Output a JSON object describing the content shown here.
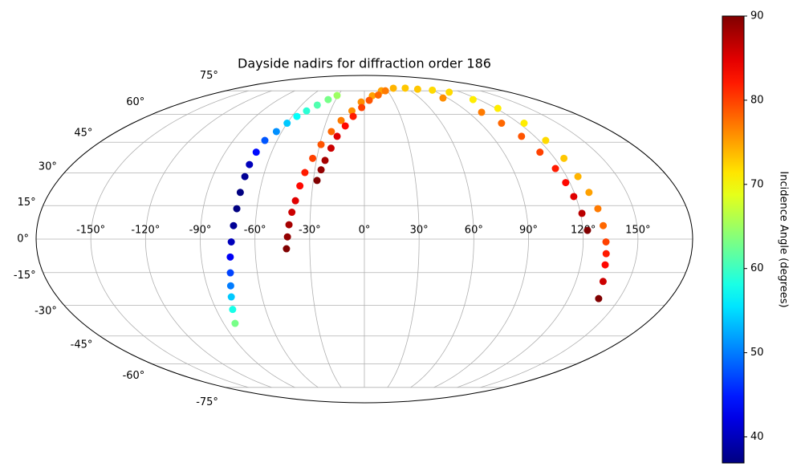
{
  "chart_data": {
    "type": "scatter",
    "projection": "mollweide",
    "title": "Dayside nadirs for diffraction order 186",
    "grid": true,
    "colormap": "jet",
    "xlim": [
      -180,
      180
    ],
    "ylim": [
      -90,
      90
    ],
    "xticks": [
      {
        "value": -150,
        "label": "-150°"
      },
      {
        "value": -120,
        "label": "-120°"
      },
      {
        "value": -90,
        "label": "-90°"
      },
      {
        "value": -60,
        "label": "-60°"
      },
      {
        "value": -30,
        "label": "-30°"
      },
      {
        "value": 0,
        "label": "0°"
      },
      {
        "value": 30,
        "label": "30°"
      },
      {
        "value": 60,
        "label": "60°"
      },
      {
        "value": 90,
        "label": "90°"
      },
      {
        "value": 120,
        "label": "120°"
      },
      {
        "value": 150,
        "label": "150°"
      }
    ],
    "yticks": [
      {
        "value": -75,
        "label": "-75°"
      },
      {
        "value": -60,
        "label": "-60°"
      },
      {
        "value": -45,
        "label": "-45°"
      },
      {
        "value": -30,
        "label": "-30°"
      },
      {
        "value": -15,
        "label": "-15°"
      },
      {
        "value": 0,
        "label": "0°"
      },
      {
        "value": 15,
        "label": "15°"
      },
      {
        "value": 30,
        "label": "30°"
      },
      {
        "value": 45,
        "label": "45°"
      },
      {
        "value": 60,
        "label": "60°"
      },
      {
        "value": 75,
        "label": "75°"
      }
    ],
    "x": [
      -31.2,
      -38,
      -45,
      -51,
      -55.9,
      -60,
      -64,
      -68.4,
      -70,
      -70.8,
      -70.9,
      -71,
      -71.2,
      -72,
      -73,
      -74,
      -75.1,
      -76.5,
      -78,
      -80,
      -82.7,
      -42.8,
      -42.2,
      -41.5,
      -40.3,
      -38.9,
      -37.4,
      -35.7,
      -32.6,
      -29.1,
      -24,
      -18.5,
      -11,
      -3.2,
      9,
      22,
      40.9,
      58,
      72.8,
      -27.8,
      -26.2,
      -24.6,
      -22,
      -19.2,
      -14.5,
      -9.3,
      -2.5,
      5,
      16,
      27.2,
      90,
      105.5,
      114,
      121.6,
      124,
      124.6,
      125.8,
      126.7,
      128.5,
      130.3,
      131.4,
      132.5,
      133.1,
      133.7,
      135.5,
      137.9,
      85,
      101.7,
      106.5,
      110.7,
      113.6,
      116.1,
      117.6,
      118.9,
      120.8,
      122.5
    ],
    "y": [
      71.7,
      69,
      65.5,
      62,
      58.8,
      55,
      50.5,
      45.9,
      40,
      34,
      28.3,
      21,
      13.6,
      6,
      -1.25,
      -8,
      -15.1,
      -21,
      -26.1,
      -32,
      -38.7,
      -4.3,
      1,
      6.4,
      12,
      17.2,
      24,
      30.2,
      37,
      43.8,
      50.5,
      56.5,
      62,
      67.4,
      71.5,
      75,
      76.9,
      77,
      76.2,
      26.5,
      31.5,
      36,
      42,
      48,
      53.5,
      58.8,
      64,
      68.5,
      72,
      75,
      75.5,
      74,
      69,
      63.5,
      55,
      45.9,
      37,
      28.3,
      21,
      13.6,
      6,
      -1.25,
      -6.5,
      -11.5,
      -19,
      -26.9,
      70,
      61.2,
      55,
      48,
      40,
      32.1,
      25.5,
      19.1,
      11.5,
      3.9
    ],
    "values": [
      65,
      63,
      61,
      59,
      57,
      54,
      51,
      48,
      44,
      40,
      38,
      37,
      37,
      38,
      40,
      43,
      47,
      50,
      54,
      58,
      63,
      90,
      89,
      88,
      86,
      85,
      83,
      82,
      80,
      79,
      78,
      77,
      76,
      76,
      75,
      75,
      74,
      73,
      73,
      90,
      89,
      88,
      86,
      85,
      83,
      82,
      80,
      79,
      78,
      77,
      72,
      72,
      71,
      71,
      71,
      72,
      73,
      74,
      75,
      77,
      78,
      80,
      82,
      83,
      86,
      90,
      76,
      77,
      78,
      79,
      80,
      82,
      83,
      85,
      87,
      90
    ],
    "colorbar": {
      "label": "Incidence Angle (degrees)",
      "clim": [
        36.9,
        90
      ],
      "ticks": [
        40,
        50,
        60,
        70,
        80,
        90
      ]
    }
  }
}
